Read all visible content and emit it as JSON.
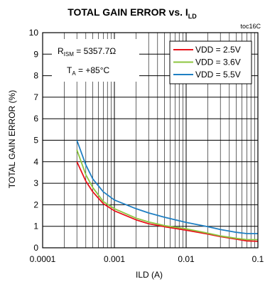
{
  "chart_data": {
    "type": "line",
    "title": "TOTAL GAIN ERROR vs. I",
    "title_subscript": "LD",
    "figure_code": "toc16C",
    "xlabel": "ILD (A)",
    "ylabel": "TOTAL GAIN ERROR  (%)",
    "x_scale": "log",
    "xlim": [
      0.0001,
      0.1
    ],
    "ylim": [
      0,
      10
    ],
    "x_ticks": [
      "0.0001",
      "0.001",
      "0.01",
      "0.1"
    ],
    "y_ticks": [
      "0",
      "1",
      "2",
      "3",
      "4",
      "5",
      "6",
      "7",
      "8",
      "9",
      "10"
    ],
    "grid": true,
    "legend_position": "top-right",
    "annotations": [
      {
        "main": "R",
        "sub": "ISM",
        "rest": " = 5357.7Ω"
      },
      {
        "main": "T",
        "sub": "A",
        "rest": " = +85°C"
      }
    ],
    "series": [
      {
        "name": "VDD = 2.5V",
        "color": "#e8141c",
        "x": [
          0.0003,
          0.0004,
          0.0005,
          0.0007,
          0.001,
          0.002,
          0.003,
          0.005,
          0.01,
          0.02,
          0.03,
          0.05,
          0.07,
          0.1
        ],
        "y": [
          4.0,
          3.1,
          2.6,
          2.05,
          1.72,
          1.3,
          1.12,
          0.98,
          0.82,
          0.64,
          0.52,
          0.4,
          0.32,
          0.3
        ]
      },
      {
        "name": "VDD = 3.6V",
        "color": "#8dc63f",
        "x": [
          0.0003,
          0.0004,
          0.0005,
          0.0007,
          0.001,
          0.002,
          0.003,
          0.005,
          0.01,
          0.02,
          0.03,
          0.05,
          0.07,
          0.1
        ],
        "y": [
          4.55,
          3.4,
          2.8,
          2.15,
          1.82,
          1.38,
          1.2,
          1.03,
          0.88,
          0.68,
          0.55,
          0.44,
          0.38,
          0.38
        ]
      },
      {
        "name": "VDD = 5.5V",
        "color": "#1f7fc3",
        "x": [
          0.0003,
          0.0004,
          0.0005,
          0.0007,
          0.001,
          0.002,
          0.003,
          0.005,
          0.01,
          0.02,
          0.03,
          0.05,
          0.07,
          0.1
        ],
        "y": [
          5.0,
          3.85,
          3.2,
          2.6,
          2.22,
          1.82,
          1.62,
          1.42,
          1.18,
          0.98,
          0.85,
          0.72,
          0.66,
          0.66
        ]
      }
    ]
  }
}
